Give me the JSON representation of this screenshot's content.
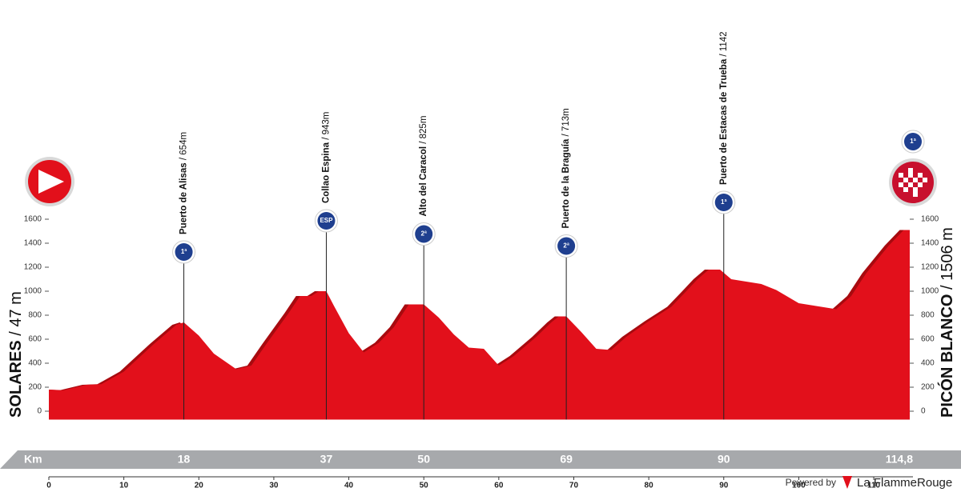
{
  "chart_data": {
    "type": "area",
    "color": "#e2101b",
    "shadow_color": "#a80a0f",
    "x": [
      0,
      2,
      5,
      7,
      10,
      14,
      17,
      18,
      20,
      22,
      25,
      27,
      29,
      32,
      33.5,
      35,
      36,
      37,
      38,
      40,
      42,
      44,
      46,
      48,
      50,
      52,
      54,
      56,
      58,
      60,
      62,
      65,
      67,
      68,
      69,
      71,
      73,
      75,
      77,
      80,
      83,
      85,
      86.5,
      88,
      89.5,
      91,
      95,
      97,
      100,
      103,
      105,
      107,
      109,
      112,
      114,
      114.8
    ],
    "values": [
      180,
      175,
      220,
      225,
      330,
      560,
      720,
      740,
      630,
      480,
      350,
      380,
      560,
      820,
      960,
      960,
      1000,
      1000,
      880,
      650,
      490,
      570,
      700,
      890,
      890,
      780,
      640,
      530,
      520,
      380,
      460,
      620,
      740,
      790,
      790,
      660,
      520,
      510,
      620,
      750,
      870,
      1000,
      1100,
      1180,
      1180,
      1100,
      1060,
      1010,
      900,
      870,
      850,
      960,
      1150,
      1380,
      1510,
      1510
    ],
    "xlim": [
      0,
      115
    ],
    "xticks": [
      0,
      10,
      20,
      30,
      40,
      50,
      60,
      70,
      80,
      90,
      100,
      110
    ],
    "ylim": [
      -70,
      1650
    ],
    "yticks": [
      0,
      200,
      400,
      600,
      800,
      1000,
      1200,
      1400,
      1600
    ],
    "km_label": "Km",
    "km_markers": [
      18,
      37,
      50,
      69,
      90,
      {
        "value": 114.8,
        "label": "114,8"
      }
    ],
    "climbs": [
      {
        "name": "Puerto de Alisas",
        "altitude": "/ 654m",
        "category": "1ª"
      },
      {
        "name": "Collao Espina",
        "altitude": "/ 943m",
        "category": "ESP"
      },
      {
        "name": "Alto del Caracol",
        "altitude": "/ 825m",
        "category": "2ª"
      },
      {
        "name": "Puerto de la Braguía",
        "altitude": "/ 713m",
        "category": "2ª"
      },
      {
        "name": "Puerto de Estacas de Trueba",
        "altitude": "/ 1142",
        "category": "1ª"
      }
    ],
    "start": {
      "name": "SOLARES",
      "altitude": "/ 47 m"
    },
    "finish": {
      "name": "PICÓN BLANCO",
      "altitude": "/ 1506 m",
      "category": "1ª"
    },
    "footer": {
      "powered_by": "Powered by",
      "brand": "La FlammeRouge"
    }
  }
}
